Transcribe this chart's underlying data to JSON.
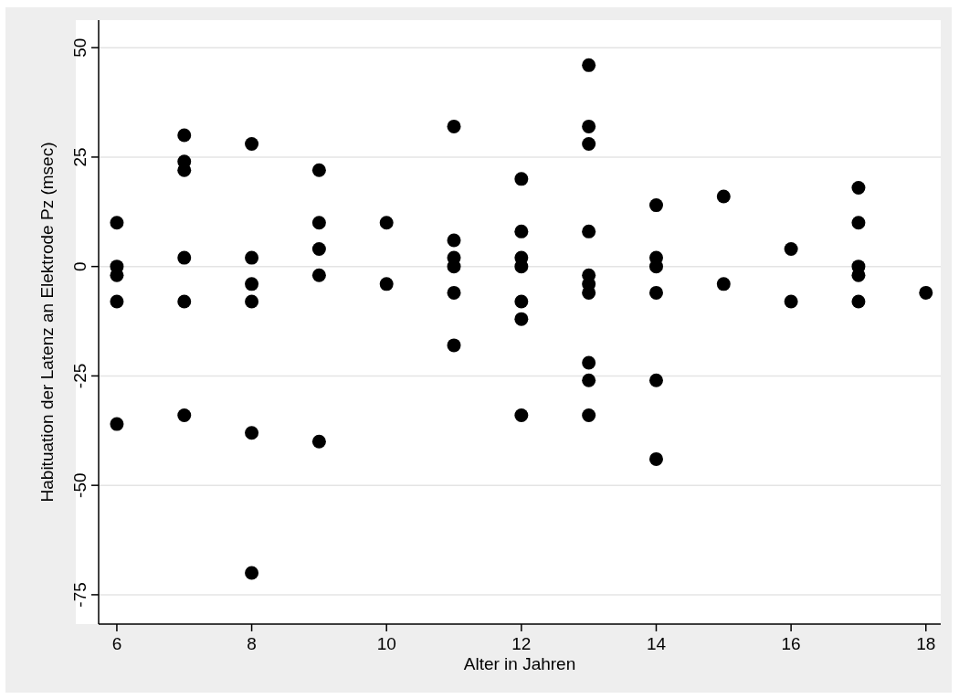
{
  "chart_data": {
    "type": "scatter",
    "xlabel": "Alter in Jahren",
    "ylabel": "Habituation der Latenz an Elektrode Pz (msec)",
    "x": [
      6,
      6,
      6,
      6,
      6,
      7,
      7,
      7,
      7,
      7,
      7,
      8,
      8,
      8,
      8,
      8,
      8,
      9,
      9,
      9,
      9,
      9,
      10,
      10,
      11,
      11,
      11,
      11,
      11,
      11,
      12,
      12,
      12,
      12,
      12,
      12,
      12,
      13,
      13,
      13,
      13,
      13,
      13,
      13,
      13,
      13,
      13,
      14,
      14,
      14,
      14,
      14,
      14,
      15,
      15,
      16,
      16,
      17,
      17,
      17,
      17,
      17,
      18
    ],
    "series": [
      {
        "color": "#000000",
        "values": [
          10,
          0,
          -2,
          -8,
          -36,
          30,
          24,
          22,
          2,
          -8,
          -34,
          28,
          2,
          -4,
          -8,
          -38,
          -70,
          22,
          10,
          4,
          -2,
          -40,
          10,
          -4,
          32,
          6,
          2,
          0,
          -6,
          -18,
          20,
          8,
          2,
          0,
          -8,
          -12,
          -34,
          46,
          32,
          28,
          8,
          -2,
          -4,
          -6,
          -22,
          -26,
          -34,
          14,
          2,
          0,
          -6,
          -26,
          -44,
          16,
          -4,
          4,
          -8,
          18,
          10,
          0,
          -2,
          -8,
          -6
        ]
      }
    ],
    "xlim": [
      5.73,
      18.22
    ],
    "xticks": [
      6,
      8,
      10,
      12,
      14,
      16,
      18
    ],
    "ylim": [
      -81.7,
      56.3
    ],
    "yticks": [
      -75,
      -50,
      -25,
      0,
      25,
      50
    ],
    "grid": "y",
    "marker": "circle"
  }
}
